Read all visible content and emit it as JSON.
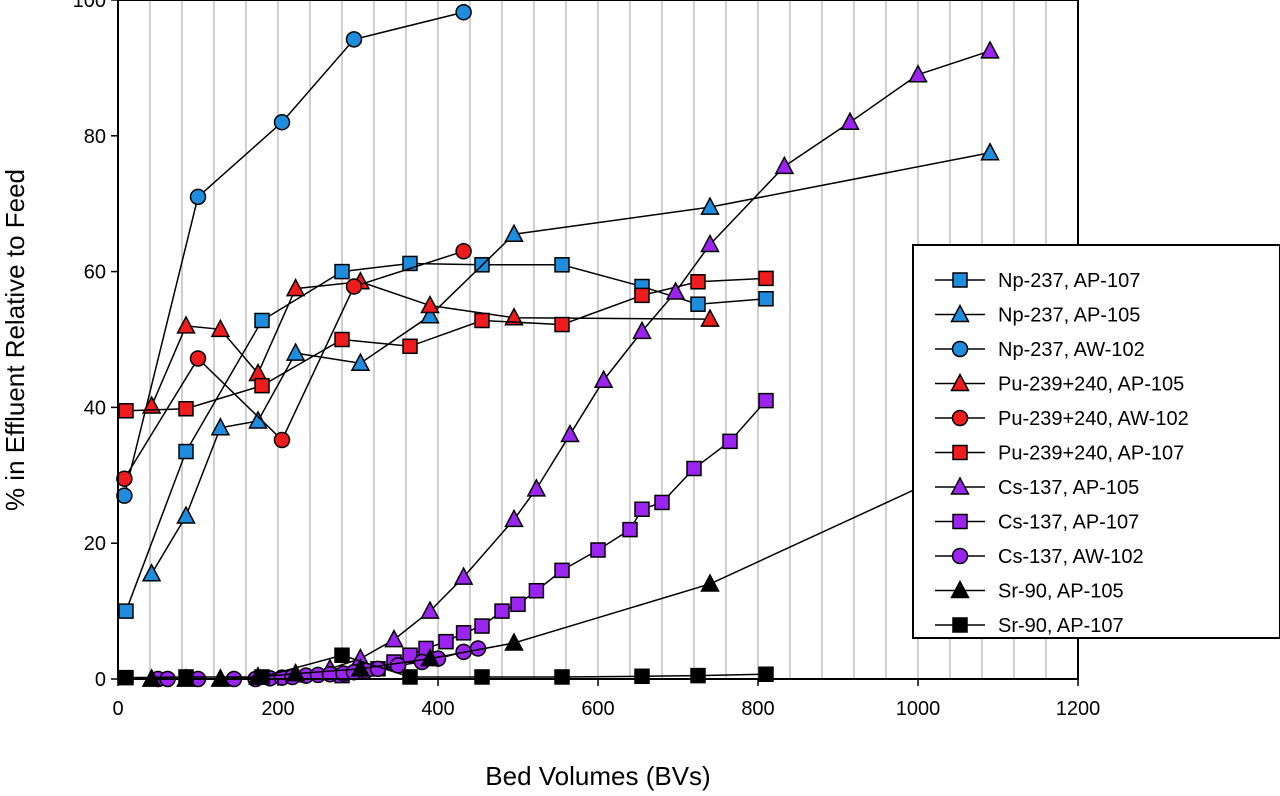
{
  "chart_data": {
    "type": "line",
    "xlabel": "Bed Volumes (BVs)",
    "ylabel": "% in Effluent Relative to Feed",
    "xlim": [
      0,
      1200
    ],
    "ylim": [
      0,
      100
    ],
    "x_ticks": [
      "0",
      "200",
      "400",
      "600",
      "800",
      "1000",
      "1200"
    ],
    "y_ticks": [
      "0",
      "20",
      "40",
      "60",
      "80",
      "100"
    ],
    "grid": "vertical",
    "legend_position": "right",
    "series": [
      {
        "name": "Np-237, AP-107",
        "marker": "square",
        "color": "#1f8ddd",
        "x": [
          10,
          85,
          180,
          280,
          365,
          455,
          555,
          655,
          725,
          810
        ],
        "y": [
          10,
          33.5,
          52.8,
          60,
          61.2,
          61,
          61,
          57.8,
          55.2,
          56
        ]
      },
      {
        "name": "Np-237, AP-105",
        "marker": "triangle",
        "color": "#1f8ddd",
        "x": [
          42,
          85,
          128,
          175,
          222,
          303,
          390,
          495,
          740,
          1090
        ],
        "y": [
          15.5,
          24,
          37,
          38,
          48,
          46.5,
          53.5,
          65.5,
          69.5,
          77.5
        ]
      },
      {
        "name": "Np-237, AW-102",
        "marker": "circle",
        "color": "#1f8ddd",
        "x": [
          8,
          100,
          205,
          295,
          432
        ],
        "y": [
          27,
          71,
          82,
          94.2,
          98.2
        ]
      },
      {
        "name": "Pu-239+240, AP-105",
        "marker": "triangle",
        "color": "#ee1c1c",
        "x": [
          42,
          85,
          128,
          175,
          222,
          303,
          390,
          495,
          740
        ],
        "y": [
          40.2,
          52,
          51.5,
          45,
          57.5,
          58.5,
          55,
          53.2,
          53
        ]
      },
      {
        "name": "Pu-239+240, AW-102",
        "marker": "circle",
        "color": "#ee1c1c",
        "x": [
          8,
          100,
          205,
          295,
          432
        ],
        "y": [
          29.5,
          47.2,
          35.2,
          57.8,
          63
        ]
      },
      {
        "name": "Pu-239+240, AP-107",
        "marker": "square",
        "color": "#ee1c1c",
        "x": [
          10,
          85,
          180,
          280,
          365,
          455,
          555,
          655,
          725,
          810
        ],
        "y": [
          39.5,
          39.8,
          43.2,
          50,
          49,
          52.8,
          52.2,
          56.5,
          58.5,
          59
        ]
      },
      {
        "name": "Cs-137, AP-105",
        "marker": "triangle",
        "color": "#9b24f0",
        "x": [
          42,
          85,
          128,
          175,
          222,
          265,
          303,
          345,
          390,
          432,
          495,
          523,
          565,
          607,
          655,
          697,
          740,
          833,
          915,
          1000,
          1090
        ],
        "y": [
          0,
          0,
          0,
          0.3,
          0.6,
          1.5,
          3,
          5.8,
          10,
          15,
          23.5,
          28,
          36,
          44,
          51.2,
          57,
          64,
          75.5,
          82,
          89,
          92.5
        ]
      },
      {
        "name": "Cs-137, AP-107",
        "marker": "square",
        "color": "#9b24f0",
        "x": [
          280,
          300,
          325,
          345,
          365,
          385,
          410,
          432,
          455,
          480,
          500,
          523,
          555,
          600,
          640,
          655,
          680,
          720,
          765,
          810
        ],
        "y": [
          0.5,
          1,
          1.5,
          2.5,
          3.5,
          4.5,
          5.5,
          6.8,
          7.8,
          10,
          11,
          13,
          16,
          19,
          22,
          25,
          26,
          31,
          35,
          41
        ]
      },
      {
        "name": "Cs-137, AW-102",
        "marker": "circle",
        "color": "#9b24f0",
        "x": [
          50,
          62,
          100,
          145,
          172,
          190,
          205,
          218,
          235,
          250,
          265,
          282,
          295,
          310,
          325,
          350,
          380,
          400,
          432,
          450
        ],
        "y": [
          0,
          0,
          0,
          0,
          0,
          0.1,
          0.2,
          0.3,
          0.5,
          0.6,
          0.7,
          0.8,
          1,
          1.2,
          1.5,
          2,
          2.5,
          3,
          4,
          4.5
        ]
      },
      {
        "name": "Sr-90, AP-105",
        "marker": "triangle",
        "color": "#000000",
        "x": [
          42,
          85,
          128,
          175,
          222,
          303,
          390,
          495,
          740,
          1090
        ],
        "y": [
          0,
          0,
          0,
          0.3,
          0.8,
          1.5,
          3,
          5.3,
          14,
          33
        ]
      },
      {
        "name": "Sr-90, AP-107",
        "marker": "square",
        "color": "#000000",
        "x": [
          10,
          85,
          180,
          280,
          365,
          455,
          555,
          655,
          725,
          810
        ],
        "y": [
          0.2,
          0.3,
          0.3,
          3.5,
          0.3,
          0.3,
          0.3,
          0.4,
          0.5,
          0.7
        ]
      }
    ]
  }
}
